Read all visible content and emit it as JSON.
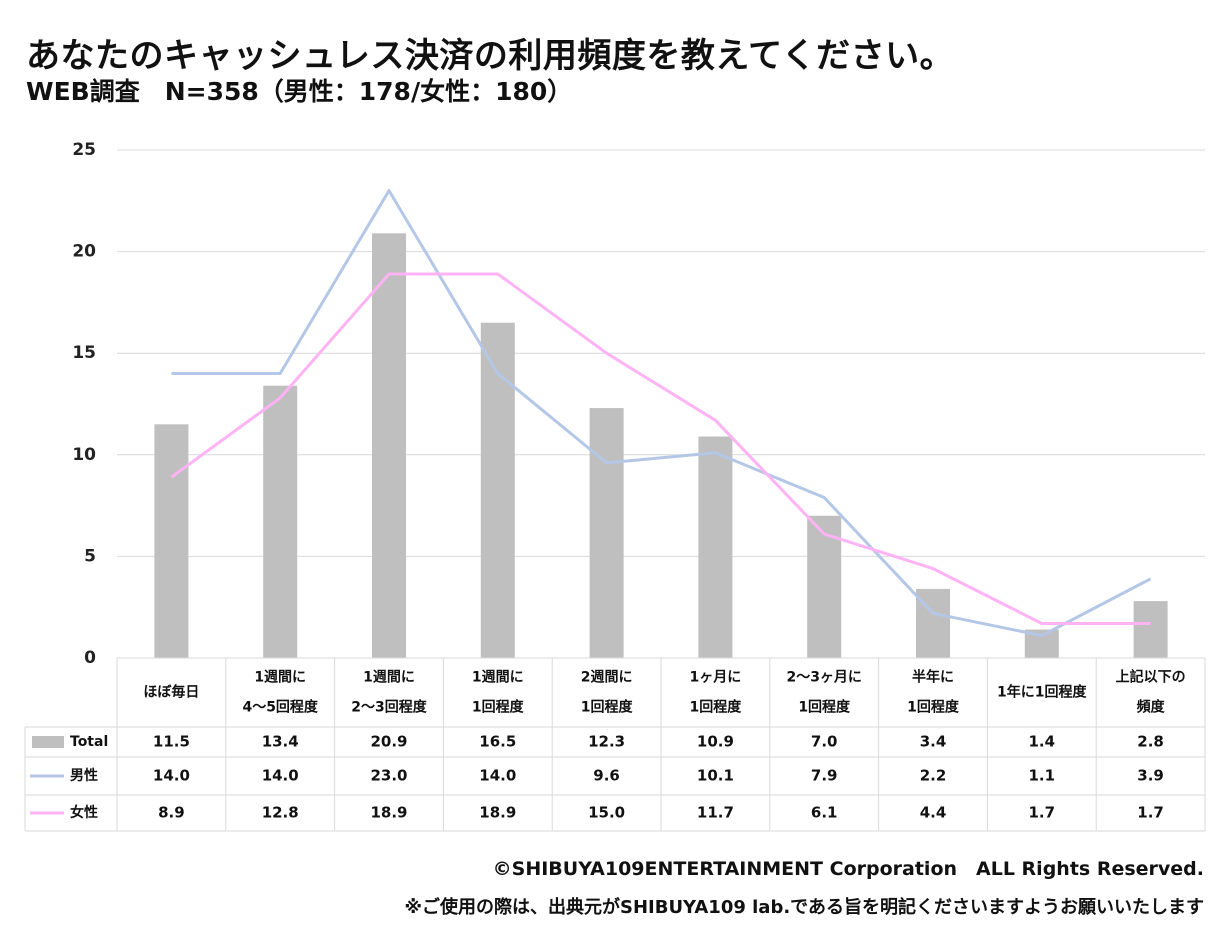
{
  "header": {
    "title": "あなたのキャッシュレス決済の利用頻度を教えてください。",
    "subtitle": "WEB調査　N=358（男性：178/女性：180）"
  },
  "chart_data": {
    "type": "bar",
    "ylim": [
      0,
      25
    ],
    "yticks": [
      "0",
      "5",
      "10",
      "15",
      "20",
      "25"
    ],
    "grid": true,
    "categories": [
      [
        "ほぼ毎日"
      ],
      [
        "1週間に",
        "4～5回程度"
      ],
      [
        "1週間に",
        "2～3回程度"
      ],
      [
        "1週間に",
        "1回程度"
      ],
      [
        "2週間に",
        "1回程度"
      ],
      [
        "1ヶ月に",
        "1回程度"
      ],
      [
        "2～3ヶ月に",
        "1回程度"
      ],
      [
        "半年に",
        "1回程度"
      ],
      [
        "1年に1回程度"
      ],
      [
        "上記以下の",
        "頻度"
      ]
    ],
    "series": [
      {
        "name": "Total",
        "kind": "bar",
        "color": "#bfbfbf",
        "values": [
          11.5,
          13.4,
          20.9,
          16.5,
          12.3,
          10.9,
          7.0,
          3.4,
          1.4,
          2.8
        ],
        "labels": [
          "11.5",
          "13.4",
          "20.9",
          "16.5",
          "12.3",
          "10.9",
          "7.0",
          "3.4",
          "1.4",
          "2.8"
        ]
      },
      {
        "name": "男性",
        "kind": "line",
        "color": "#b4c7e7",
        "values": [
          14.0,
          14.0,
          23.0,
          14.0,
          9.6,
          10.1,
          7.9,
          2.2,
          1.1,
          3.9
        ],
        "labels": [
          "14.0",
          "14.0",
          "23.0",
          "14.0",
          "9.6",
          "10.1",
          "7.9",
          "2.2",
          "1.1",
          "3.9"
        ]
      },
      {
        "name": "女性",
        "kind": "line",
        "color": "#ffb3f5",
        "values": [
          8.9,
          12.8,
          18.9,
          18.9,
          15.0,
          11.7,
          6.1,
          4.4,
          1.7,
          1.7
        ],
        "labels": [
          "8.9",
          "12.8",
          "18.9",
          "18.9",
          "15.0",
          "11.7",
          "6.1",
          "4.4",
          "1.7",
          "1.7"
        ]
      }
    ]
  },
  "footer": {
    "copyright": "©SHIBUYA109ENTERTAINMENT Corporation　ALL Rights Reserved.",
    "note": "※ご使用の際は、出典元がSHIBUYA109 lab.である旨を明記くださいますようお願いいたします"
  }
}
